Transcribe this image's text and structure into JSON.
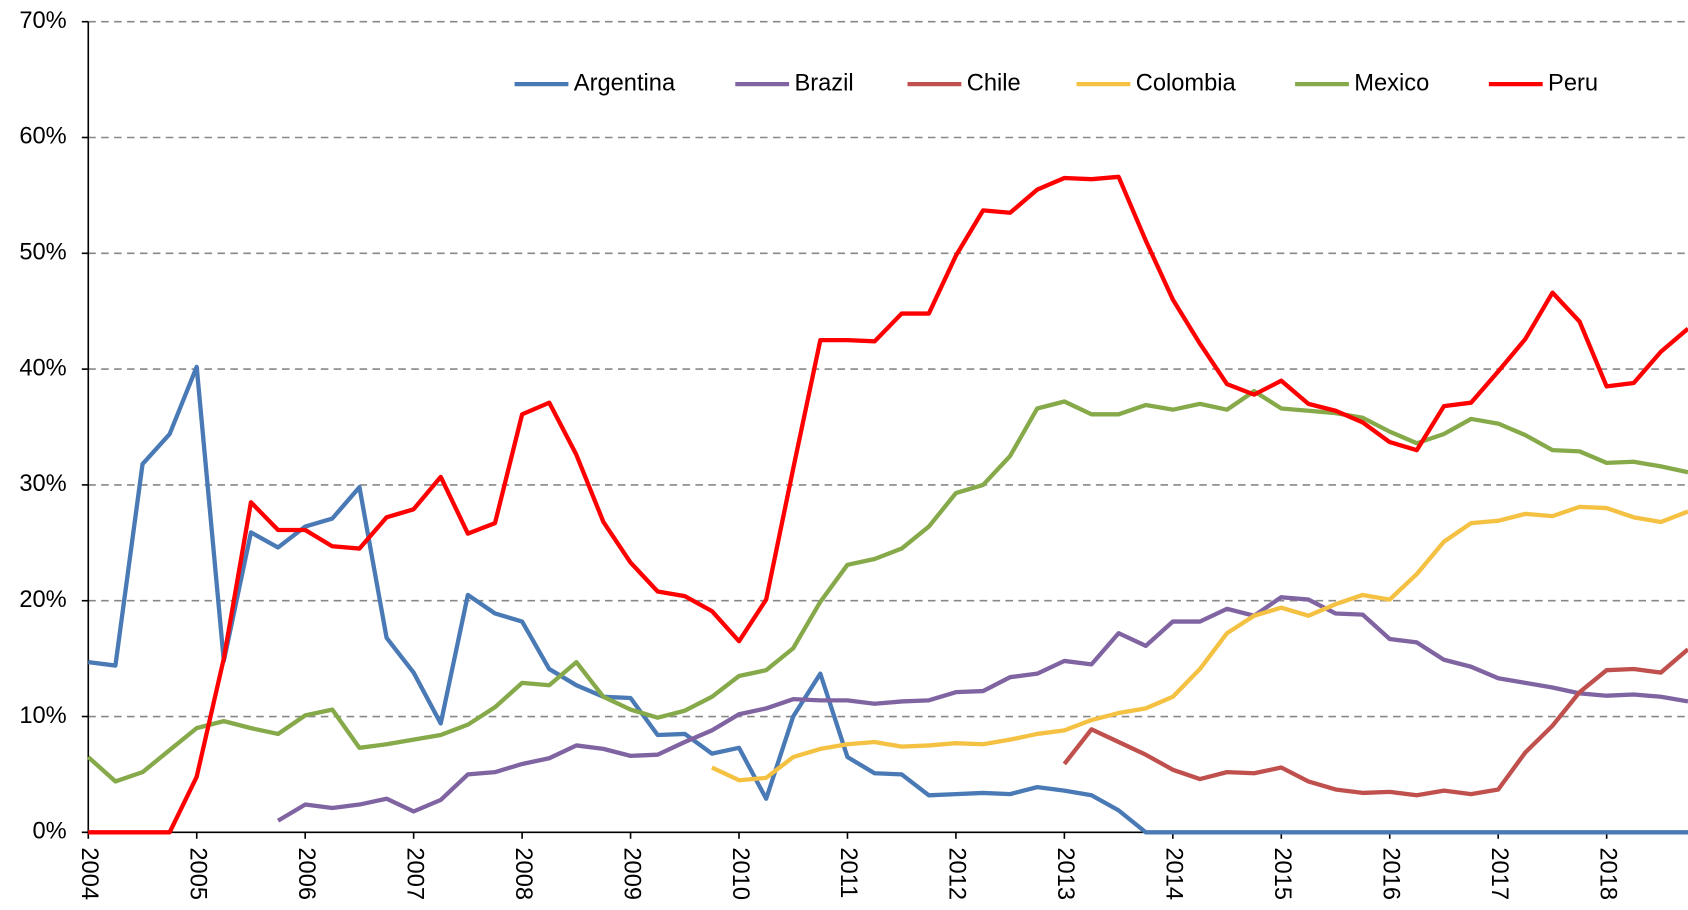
{
  "chart_data": {
    "type": "line",
    "categories": [
      "2004",
      null,
      null,
      null,
      "2005",
      null,
      null,
      null,
      "2006",
      null,
      null,
      null,
      "2007",
      null,
      null,
      null,
      "2008",
      null,
      null,
      null,
      "2009",
      null,
      null,
      null,
      "2010",
      null,
      null,
      null,
      "2011",
      null,
      null,
      null,
      "2012",
      null,
      null,
      null,
      "2013",
      null,
      null,
      null,
      "2014",
      null,
      null,
      null,
      "2015",
      null,
      null,
      null,
      "2016",
      null,
      null,
      null,
      "2017",
      null,
      null,
      null,
      "2018",
      null,
      null,
      null
    ],
    "ylim": [
      0,
      70
    ],
    "yticks": [
      {
        "value": 0,
        "label": "0%"
      },
      {
        "value": 10,
        "label": "10%"
      },
      {
        "value": 20,
        "label": "20%"
      },
      {
        "value": 30,
        "label": "30%"
      },
      {
        "value": 40,
        "label": "40%"
      },
      {
        "value": 50,
        "label": "50%"
      },
      {
        "value": 60,
        "label": "60%"
      },
      {
        "value": 70,
        "label": "70%"
      }
    ],
    "grid": true,
    "legend": "top",
    "series": [
      {
        "name": "Argentina",
        "color": "#4a7ab5",
        "values": [
          14.7,
          14.4,
          31.8,
          34.4,
          40.2,
          14.8,
          25.9,
          24.6,
          26.4,
          27.1,
          29.8,
          16.8,
          13.8,
          9.4,
          20.5,
          18.9,
          18.2,
          14.1,
          12.7,
          11.7,
          11.6,
          8.4,
          8.5,
          6.8,
          7.3,
          2.9,
          10.0,
          13.7,
          6.5,
          5.1,
          5.0,
          3.2,
          3.3,
          3.4,
          3.3,
          3.9,
          3.6,
          3.2,
          1.9,
          0,
          0,
          0,
          0,
          0,
          0,
          0,
          0,
          0,
          0,
          0,
          0,
          0,
          0,
          0,
          0,
          0,
          0,
          0,
          0,
          0
        ]
      },
      {
        "name": "Brazil",
        "color": "#8064a2",
        "values": [
          null,
          null,
          null,
          null,
          null,
          null,
          null,
          1.0,
          2.4,
          2.1,
          2.4,
          2.9,
          1.8,
          2.8,
          5.0,
          5.2,
          5.9,
          6.4,
          7.5,
          7.2,
          6.6,
          6.7,
          7.8,
          8.8,
          10.2,
          10.7,
          11.5,
          11.4,
          11.4,
          11.1,
          11.3,
          11.4,
          12.1,
          12.2,
          13.4,
          13.7,
          14.8,
          14.5,
          17.2,
          16.1,
          18.2,
          18.2,
          19.3,
          18.7,
          20.3,
          20.1,
          18.9,
          18.8,
          16.7,
          16.4,
          14.9,
          14.3,
          13.3,
          12.9,
          12.5,
          12.0,
          11.8,
          11.9,
          11.7,
          11.3
        ]
      },
      {
        "name": "Chile",
        "color": "#c0504d",
        "values": [
          null,
          null,
          null,
          null,
          null,
          null,
          null,
          null,
          null,
          null,
          null,
          null,
          null,
          null,
          null,
          null,
          null,
          null,
          null,
          null,
          null,
          null,
          null,
          null,
          null,
          null,
          null,
          null,
          null,
          null,
          null,
          null,
          null,
          null,
          null,
          null,
          5.9,
          8.9,
          7.8,
          6.7,
          5.4,
          4.6,
          5.2,
          5.1,
          5.6,
          4.4,
          3.7,
          3.4,
          3.5,
          3.2,
          3.6,
          3.3,
          3.7,
          6.9,
          9.2,
          12.1,
          14.0,
          14.1,
          13.8,
          15.8
        ]
      },
      {
        "name": "Colombia",
        "color": "#f4c142",
        "values": [
          null,
          null,
          null,
          null,
          null,
          null,
          null,
          null,
          null,
          null,
          null,
          null,
          null,
          null,
          null,
          null,
          null,
          null,
          null,
          null,
          null,
          null,
          null,
          5.6,
          4.5,
          4.7,
          6.5,
          7.2,
          7.6,
          7.8,
          7.4,
          7.5,
          7.7,
          7.6,
          8.0,
          8.5,
          8.8,
          9.7,
          10.3,
          10.7,
          11.7,
          14.1,
          17.2,
          18.7,
          19.4,
          18.7,
          19.7,
          20.5,
          20.1,
          22.3,
          25.1,
          26.7,
          26.9,
          27.5,
          27.3,
          28.1,
          28.0,
          27.2,
          26.8,
          27.7
        ]
      },
      {
        "name": "Mexico",
        "color": "#86a94a",
        "values": [
          6.5,
          4.4,
          5.2,
          7.1,
          9.0,
          9.6,
          9.0,
          8.5,
          10.1,
          10.6,
          7.3,
          7.6,
          8.0,
          8.4,
          9.3,
          10.8,
          12.9,
          12.7,
          14.7,
          11.7,
          10.6,
          9.9,
          10.5,
          11.7,
          13.5,
          14.0,
          15.9,
          19.9,
          23.1,
          23.6,
          24.5,
          26.4,
          29.3,
          30.0,
          32.5,
          36.6,
          37.2,
          36.1,
          36.1,
          36.9,
          36.5,
          37.0,
          36.5,
          38.1,
          36.6,
          36.4,
          36.2,
          35.8,
          34.6,
          33.6,
          34.4,
          35.7,
          35.3,
          34.3,
          33.0,
          32.9,
          31.9,
          32.0,
          31.6,
          31.1
        ]
      },
      {
        "name": "Peru",
        "color": "#ff0000",
        "values": [
          0,
          0,
          0,
          0,
          4.8,
          15.0,
          28.5,
          26.1,
          26.1,
          24.7,
          24.5,
          27.2,
          27.9,
          30.7,
          25.8,
          26.7,
          36.1,
          37.1,
          32.6,
          26.8,
          23.3,
          20.8,
          20.4,
          19.1,
          16.5,
          20.1,
          31.4,
          42.5,
          42.5,
          42.4,
          44.8,
          44.8,
          49.8,
          53.7,
          53.5,
          55.5,
          56.5,
          56.4,
          56.6,
          51.1,
          46.0,
          42.2,
          38.7,
          37.8,
          39.0,
          37.0,
          36.4,
          35.4,
          33.7,
          33.0,
          36.8,
          37.1,
          39.8,
          42.6,
          46.6,
          44.1,
          38.5,
          38.8,
          41.5,
          43.5
        ]
      }
    ]
  }
}
